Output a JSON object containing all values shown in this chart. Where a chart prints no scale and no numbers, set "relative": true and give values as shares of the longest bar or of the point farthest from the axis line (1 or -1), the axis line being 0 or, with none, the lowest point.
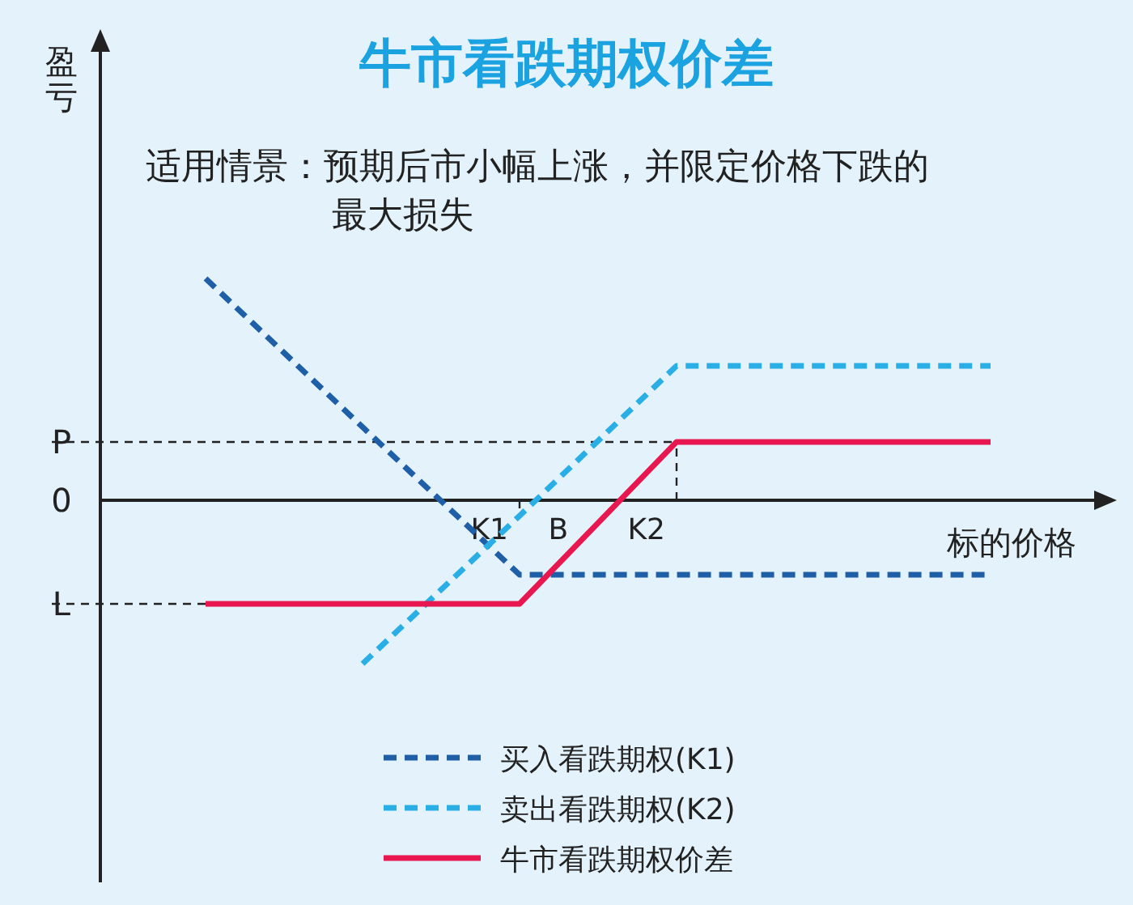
{
  "chart_data": {
    "type": "line",
    "title": "牛市看跌期权价差",
    "xlabel": "标的价格",
    "annotations": [
      "适用情景：预期后市小幅上涨，并限定价格下跌的最大损失",
      "0",
      "B",
      "盈亏"
    ],
    "relative": true,
    "categories": [
      null,
      null,
      "K1",
      "K2",
      null,
      null
    ],
    "legend": "bottom",
    "ref_lines": [
      {
        "axis": "y",
        "value": 0.263,
        "label": "P",
        "line_style": "dashed"
      },
      {
        "axis": "y",
        "value": -0.467,
        "label": "L",
        "line_style": "dashed"
      }
    ],
    "series": [
      {
        "name": "买入看跌期权(K1)",
        "color": "#1f5fa8",
        "line_style": "dashed",
        "values": [
          1,
          0.33,
          -0.336,
          -0.336,
          -0.336,
          -0.336
        ]
      },
      {
        "name": "卖出看跌期权(K2)",
        "color": "#29aee6",
        "line_style": "dashed",
        "values": [
          null,
          -0.737,
          -0.07,
          0.606,
          0.606,
          0.606
        ]
      },
      {
        "name": "牛市看跌期权价差",
        "color": "#e8174f",
        "line_style": "solid",
        "values": [
          -0.467,
          -0.467,
          -0.467,
          0.263,
          0.263,
          0.263
        ]
      }
    ]
  }
}
